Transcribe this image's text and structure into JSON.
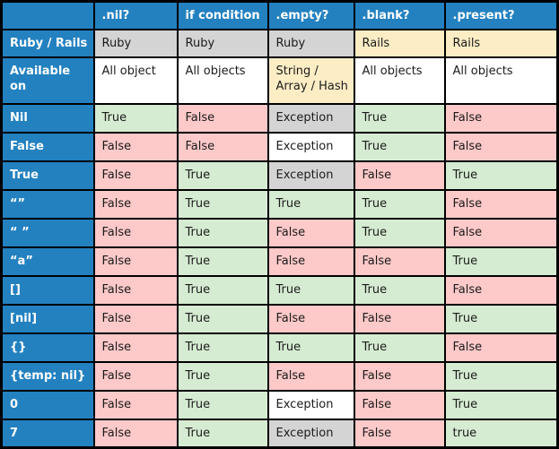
{
  "colors": {
    "header_blue": "#2381c0",
    "border_black": "#000000",
    "cell_green": "#d6ecd2",
    "cell_pink": "#fdc9c9",
    "cell_gray": "#d4d4d4",
    "cell_cream": "#fcedc5",
    "cell_white": "#ffffff",
    "header_text": "#ffffff",
    "cell_text": "#1b1b1b"
  },
  "chart_data": {
    "type": "table",
    "title": "Ruby / Rails nil-empty-blank-present comparison table",
    "columns": [
      "",
      ".nil?",
      "if condition",
      ".empty?",
      ".blank?",
      ".present?"
    ],
    "rows": [
      {
        "label": "Ruby / Rails",
        "cells": [
          {
            "text": "Ruby",
            "bg": "gray"
          },
          {
            "text": "Ruby",
            "bg": "gray"
          },
          {
            "text": "Ruby",
            "bg": "gray"
          },
          {
            "text": "Rails",
            "bg": "cream"
          },
          {
            "text": "Rails",
            "bg": "cream"
          }
        ]
      },
      {
        "label": "Available on",
        "cells": [
          {
            "text": "All object",
            "bg": "white"
          },
          {
            "text": "All objects",
            "bg": "white"
          },
          {
            "text": "String / Array / Hash",
            "bg": "cream"
          },
          {
            "text": "All objects",
            "bg": "white"
          },
          {
            "text": "All objects",
            "bg": "white"
          }
        ]
      },
      {
        "label": "Nil",
        "cells": [
          {
            "text": "True",
            "bg": "green"
          },
          {
            "text": "False",
            "bg": "pink"
          },
          {
            "text": "Exception",
            "bg": "gray"
          },
          {
            "text": "True",
            "bg": "green"
          },
          {
            "text": "False",
            "bg": "pink"
          }
        ]
      },
      {
        "label": "False",
        "cells": [
          {
            "text": "False",
            "bg": "pink"
          },
          {
            "text": "False",
            "bg": "pink"
          },
          {
            "text": "Exception",
            "bg": "white"
          },
          {
            "text": "True",
            "bg": "green"
          },
          {
            "text": "False",
            "bg": "pink"
          }
        ]
      },
      {
        "label": "True",
        "cells": [
          {
            "text": "False",
            "bg": "pink"
          },
          {
            "text": "True",
            "bg": "green"
          },
          {
            "text": "Exception",
            "bg": "gray"
          },
          {
            "text": "False",
            "bg": "pink"
          },
          {
            "text": "True",
            "bg": "green"
          }
        ]
      },
      {
        "label": "“”",
        "cells": [
          {
            "text": "False",
            "bg": "pink"
          },
          {
            "text": "True",
            "bg": "green"
          },
          {
            "text": "True",
            "bg": "green"
          },
          {
            "text": "True",
            "bg": "green"
          },
          {
            "text": "False",
            "bg": "pink"
          }
        ]
      },
      {
        "label": "“ ”",
        "cells": [
          {
            "text": "False",
            "bg": "pink"
          },
          {
            "text": "True",
            "bg": "green"
          },
          {
            "text": "False",
            "bg": "pink"
          },
          {
            "text": "True",
            "bg": "green"
          },
          {
            "text": "False",
            "bg": "pink"
          }
        ]
      },
      {
        "label": "“a”",
        "cells": [
          {
            "text": "False",
            "bg": "pink"
          },
          {
            "text": "True",
            "bg": "green"
          },
          {
            "text": "False",
            "bg": "pink"
          },
          {
            "text": "False",
            "bg": "pink"
          },
          {
            "text": "True",
            "bg": "green"
          }
        ]
      },
      {
        "label": "[]",
        "cells": [
          {
            "text": "False",
            "bg": "pink"
          },
          {
            "text": "True",
            "bg": "green"
          },
          {
            "text": "True",
            "bg": "green"
          },
          {
            "text": "True",
            "bg": "green"
          },
          {
            "text": "False",
            "bg": "pink"
          }
        ]
      },
      {
        "label": "[nil]",
        "cells": [
          {
            "text": "False",
            "bg": "pink"
          },
          {
            "text": "True",
            "bg": "green"
          },
          {
            "text": "False",
            "bg": "pink"
          },
          {
            "text": "False",
            "bg": "pink"
          },
          {
            "text": "True",
            "bg": "green"
          }
        ]
      },
      {
        "label": "{}",
        "cells": [
          {
            "text": "False",
            "bg": "pink"
          },
          {
            "text": "True",
            "bg": "green"
          },
          {
            "text": "True",
            "bg": "green"
          },
          {
            "text": "True",
            "bg": "green"
          },
          {
            "text": "False",
            "bg": "pink"
          }
        ]
      },
      {
        "label": "{temp: nil}",
        "cells": [
          {
            "text": "False",
            "bg": "pink"
          },
          {
            "text": "True",
            "bg": "green"
          },
          {
            "text": "False",
            "bg": "pink"
          },
          {
            "text": "False",
            "bg": "pink"
          },
          {
            "text": "True",
            "bg": "green"
          }
        ]
      },
      {
        "label": "0",
        "cells": [
          {
            "text": "False",
            "bg": "pink"
          },
          {
            "text": "True",
            "bg": "green"
          },
          {
            "text": "Exception",
            "bg": "white"
          },
          {
            "text": "False",
            "bg": "pink"
          },
          {
            "text": "True",
            "bg": "green"
          }
        ]
      },
      {
        "label": "7",
        "cells": [
          {
            "text": "False",
            "bg": "pink"
          },
          {
            "text": "True",
            "bg": "green"
          },
          {
            "text": "Exception",
            "bg": "gray"
          },
          {
            "text": "False",
            "bg": "pink"
          },
          {
            "text": "true",
            "bg": "green"
          }
        ]
      }
    ]
  }
}
